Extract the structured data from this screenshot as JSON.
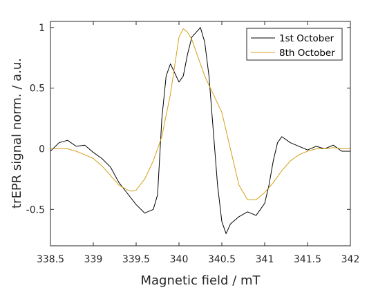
{
  "chart_data": {
    "type": "line",
    "title": "",
    "xlabel": "Magnetic field / mT",
    "ylabel": "trEPR signal norm. / a.u.",
    "xlim": [
      338.5,
      342
    ],
    "ylim": [
      -0.8,
      1.05
    ],
    "xticks": [
      338.5,
      339,
      339.5,
      340,
      340.5,
      341,
      341.5,
      342
    ],
    "xtick_labels": [
      "338.5",
      "339",
      "339.5",
      "340",
      "340.5",
      "341",
      "341.5",
      "342"
    ],
    "yticks": [
      1,
      0.5,
      0,
      -0.5
    ],
    "ytick_labels": [
      "1",
      "0.5",
      "0",
      "-0.5"
    ],
    "grid": false,
    "legend_position": "top-right",
    "series": [
      {
        "name": "1st October",
        "color": "#000000",
        "x": [
          338.5,
          338.6,
          338.7,
          338.8,
          338.9,
          339.0,
          339.1,
          339.2,
          339.3,
          339.4,
          339.5,
          339.6,
          339.7,
          339.75,
          339.8,
          339.85,
          339.9,
          340.0,
          340.05,
          340.1,
          340.15,
          340.2,
          340.25,
          340.3,
          340.35,
          340.4,
          340.45,
          340.5,
          340.55,
          340.6,
          340.7,
          340.8,
          340.9,
          341.0,
          341.05,
          341.1,
          341.15,
          341.2,
          341.3,
          341.4,
          341.5,
          341.6,
          341.7,
          341.8,
          341.9,
          342.0
        ],
        "values": [
          -0.02,
          0.05,
          0.07,
          0.02,
          0.03,
          -0.03,
          -0.08,
          -0.15,
          -0.28,
          -0.37,
          -0.46,
          -0.53,
          -0.5,
          -0.38,
          0.25,
          0.6,
          0.7,
          0.55,
          0.6,
          0.78,
          0.92,
          0.96,
          1.0,
          0.88,
          0.6,
          0.15,
          -0.3,
          -0.6,
          -0.7,
          -0.62,
          -0.56,
          -0.52,
          -0.55,
          -0.45,
          -0.3,
          -0.1,
          0.05,
          0.1,
          0.05,
          0.02,
          -0.01,
          0.02,
          0.0,
          0.03,
          -0.02,
          -0.02
        ]
      },
      {
        "name": "8th October",
        "color": "#D4A017",
        "x": [
          338.5,
          338.6,
          338.7,
          338.8,
          338.9,
          339.0,
          339.1,
          339.2,
          339.3,
          339.4,
          339.45,
          339.5,
          339.6,
          339.7,
          339.8,
          339.9,
          340.0,
          340.05,
          340.1,
          340.15,
          340.2,
          340.3,
          340.4,
          340.5,
          340.6,
          340.7,
          340.8,
          340.9,
          341.0,
          341.1,
          341.2,
          341.3,
          341.4,
          341.5,
          341.6,
          341.7,
          341.8,
          341.9,
          342.0
        ],
        "values": [
          0.0,
          0.0,
          0.0,
          -0.02,
          -0.05,
          -0.08,
          -0.14,
          -0.22,
          -0.3,
          -0.34,
          -0.35,
          -0.34,
          -0.25,
          -0.1,
          0.1,
          0.45,
          0.92,
          0.99,
          0.96,
          0.9,
          0.8,
          0.6,
          0.45,
          0.3,
          0.0,
          -0.3,
          -0.42,
          -0.42,
          -0.36,
          -0.28,
          -0.18,
          -0.1,
          -0.05,
          -0.02,
          0.0,
          0.0,
          0.01,
          0.0,
          0.0
        ]
      }
    ]
  }
}
